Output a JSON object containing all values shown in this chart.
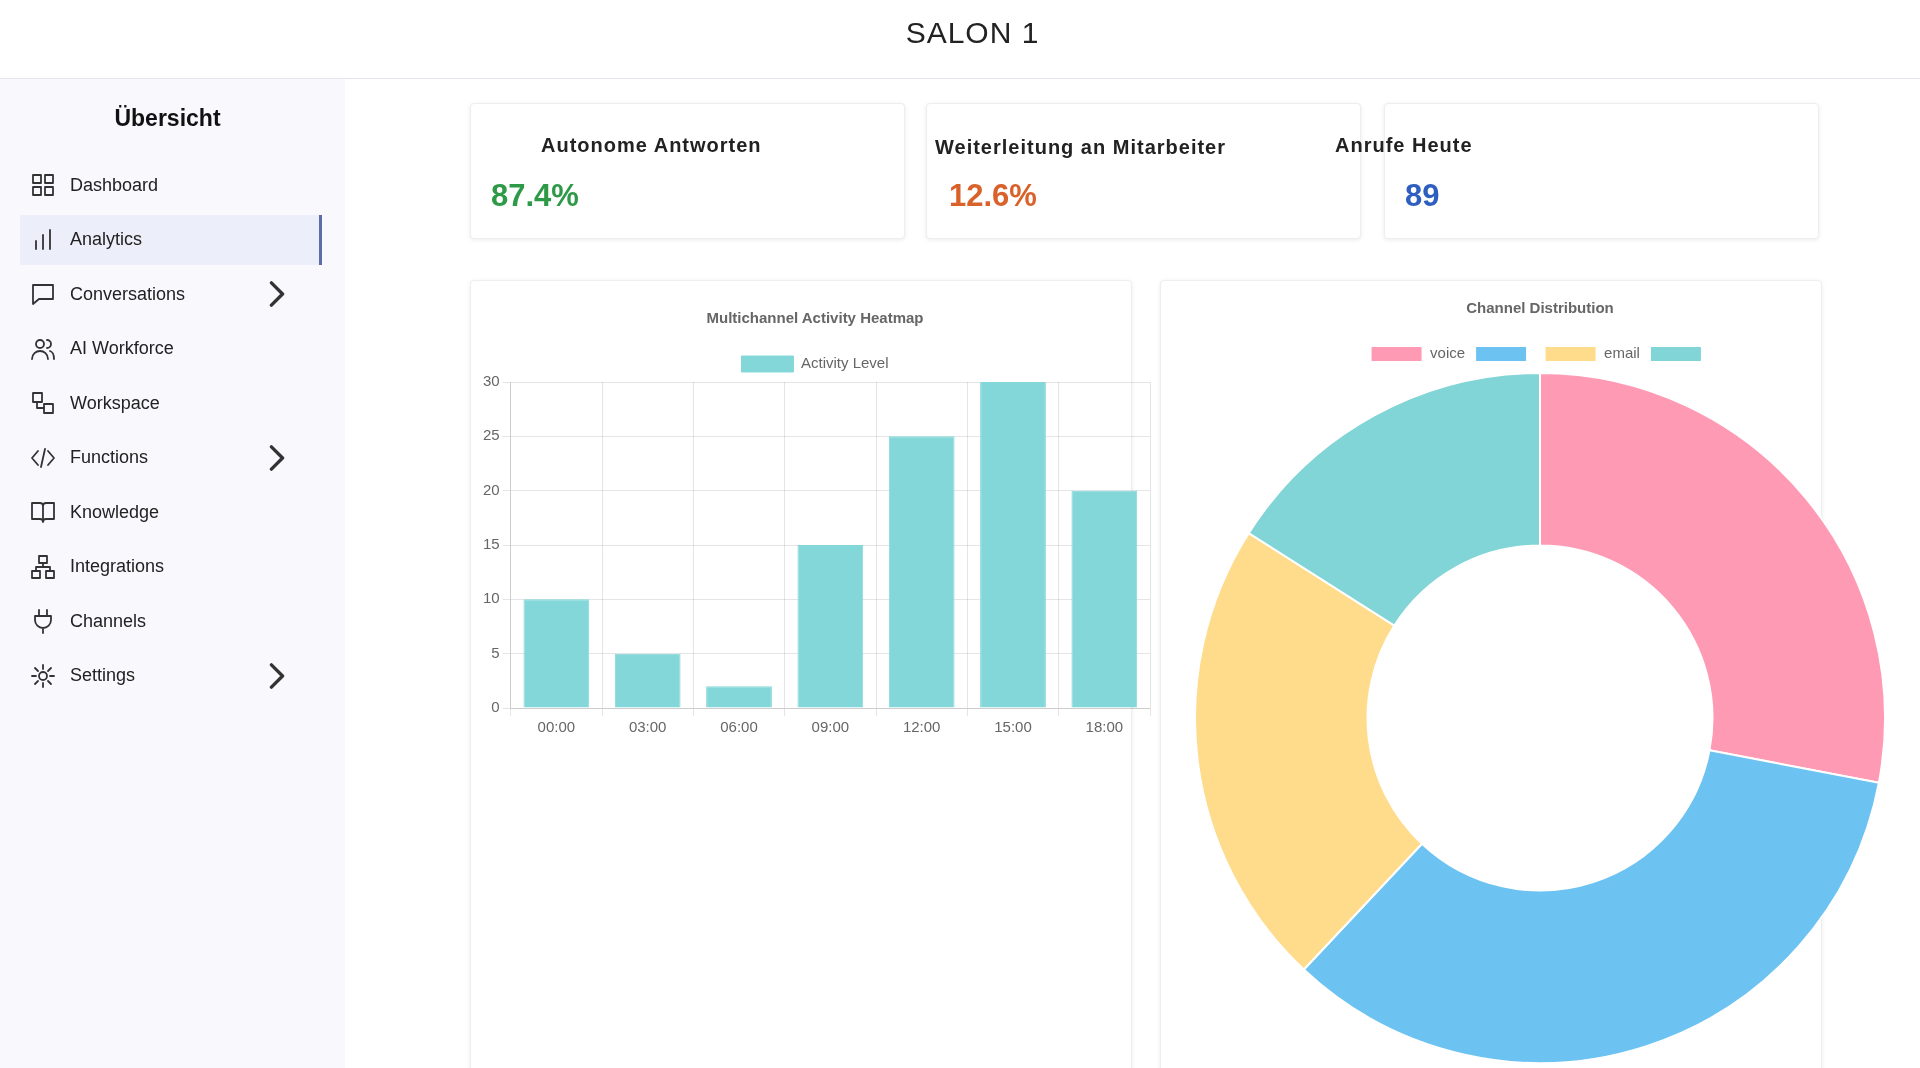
{
  "chart_data": [
    {
      "type": "other",
      "title": "SALON 1",
      "subtitle": "Übersicht",
      "annotations": [
        "Dashboard",
        "Analytics",
        "Conversations",
        "AI Workforce",
        "Workspace",
        "Functions",
        "Knowledge",
        "Integrations",
        "Channels",
        "Settings"
      ]
    },
    {
      "type": "other",
      "annotations": [
        "Autonome Antworten",
        "87.4%",
        "Weiterleitung an Mitarbeiter",
        "12.6%",
        "Anrufe Heute",
        "89"
      ],
      "colors": [
        "#2e9a48",
        "#d9622b",
        "#2e5fc0"
      ]
    },
    {
      "type": "bar",
      "title": "Multichannel Activity Heatmap",
      "categories": [
        "00:00",
        "03:00",
        "06:00",
        "09:00",
        "12:00",
        "15:00",
        "18:00"
      ],
      "series": [
        {
          "name": "Activity Level",
          "color": "#84d7d9",
          "values": [
            10,
            5,
            2,
            15,
            25,
            30,
            20
          ]
        }
      ],
      "ylim": [
        0,
        30
      ],
      "yticks": [
        0,
        5,
        10,
        15,
        20,
        25,
        30
      ],
      "grid": true,
      "legend": "top"
    },
    {
      "type": "donut",
      "title": "Channel Distribution",
      "categories": [
        "voice",
        null,
        "email",
        null
      ],
      "values": [
        28,
        34,
        22,
        16
      ],
      "colors": [
        "#ff9ab5",
        "#6cc3f2",
        "#ffdb8c",
        "#82d5d6"
      ],
      "legend": "top"
    }
  ]
}
